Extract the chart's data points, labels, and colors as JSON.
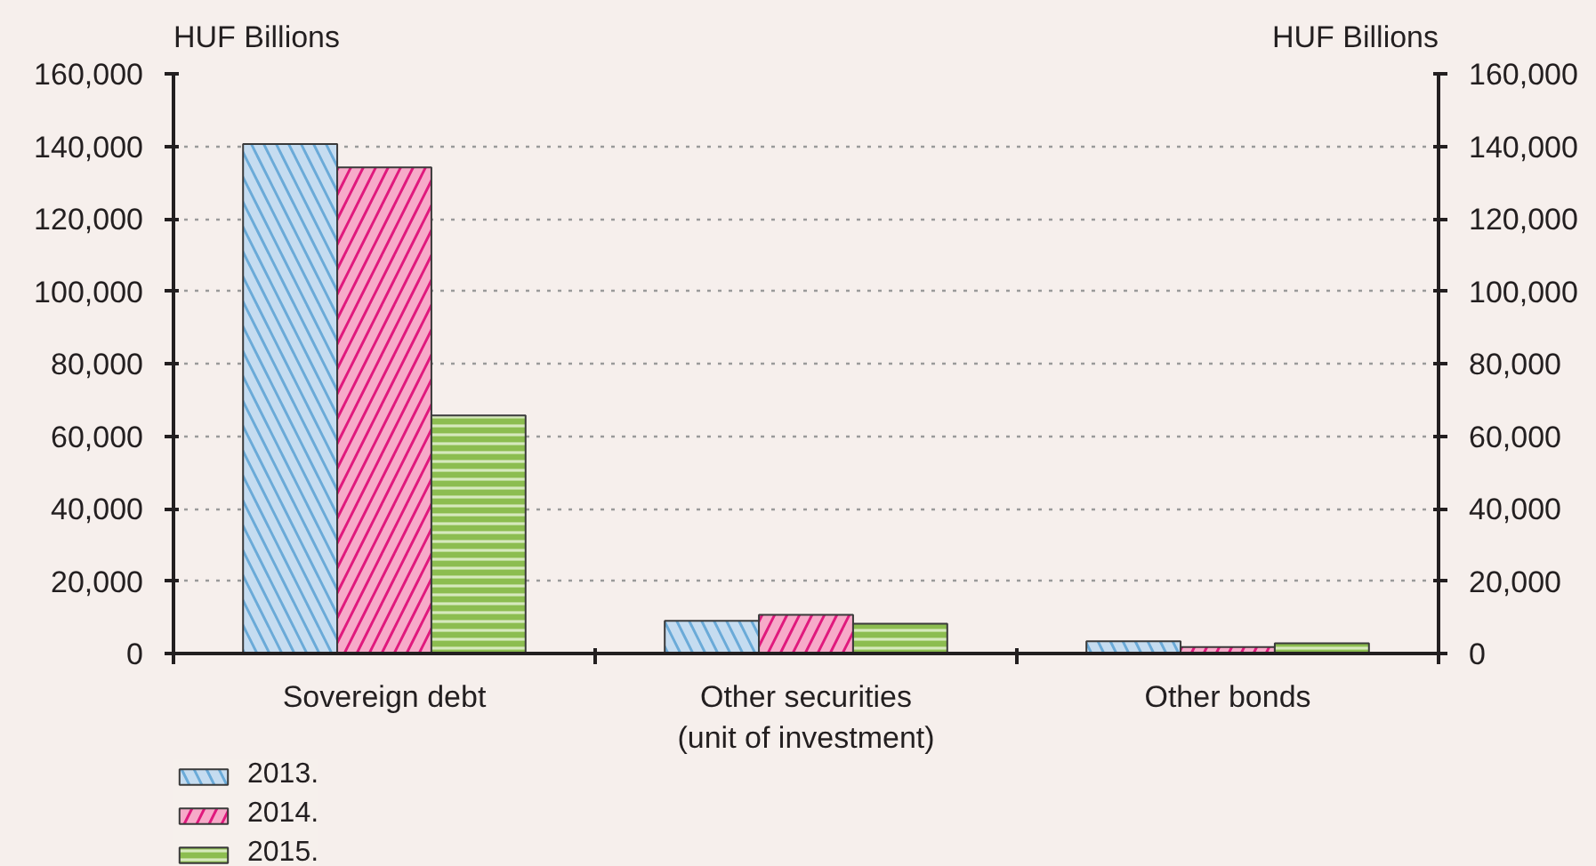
{
  "chart_data": {
    "type": "bar",
    "categories": [
      "Sovereign debt",
      "Other securities\n(unit of investment)",
      "Other bonds"
    ],
    "series": [
      {
        "name": "2013.",
        "color": "#c5dcf0",
        "values": [
          140600,
          9000,
          3400
        ]
      },
      {
        "name": "2014.",
        "color": "#f7aac9",
        "values": [
          134200,
          10700,
          1800
        ]
      },
      {
        "name": "2015.",
        "color": "#8cbd50",
        "values": [
          65700,
          8200,
          2800
        ]
      }
    ],
    "ylabel": "HUF Billions",
    "y2label": "HUF Billions",
    "ylim": [
      0,
      160000
    ],
    "yticks": [
      0,
      {
        "value": 20000,
        "label": "20,000"
      },
      {
        "value": 40000,
        "label": "40,000"
      },
      {
        "value": 60000,
        "label": "60,000"
      },
      {
        "value": 80000,
        "label": "80,000"
      },
      {
        "value": 100000,
        "label": "100,000"
      },
      {
        "value": 120000,
        "label": "120,000"
      },
      {
        "value": 140000,
        "label": "140,000"
      },
      {
        "value": 160000,
        "label": "160,000"
      }
    ],
    "y2lim": [
      0,
      160000
    ],
    "y2ticks": [
      0,
      {
        "value": 20000,
        "label": "20,000"
      },
      {
        "value": 40000,
        "label": "40,000"
      },
      {
        "value": 60000,
        "label": "60,000"
      },
      {
        "value": 80000,
        "label": "80,000"
      },
      {
        "value": 100000,
        "label": "100,000"
      },
      {
        "value": 120000,
        "label": "120,000"
      },
      {
        "value": 140000,
        "label": "140,000"
      },
      {
        "value": 160000,
        "label": "160,000"
      }
    ],
    "grid": "y",
    "legend": "bottom left"
  }
}
